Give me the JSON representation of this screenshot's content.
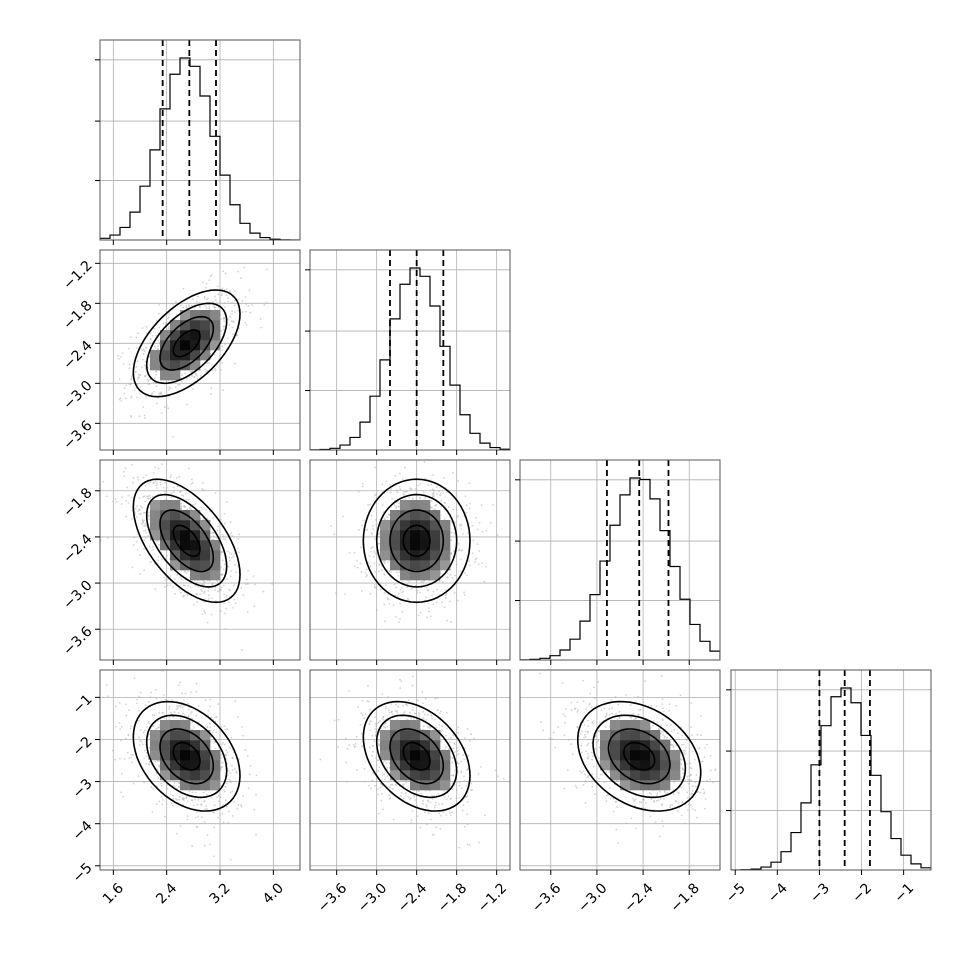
{
  "chart_data": {
    "type": "corner",
    "parameters": [
      {
        "name": "",
        "mean": 2.7,
        "std": 0.4,
        "quantiles": [
          2.34,
          2.74,
          3.14
        ],
        "hist_range": [
          1.4,
          4.4
        ],
        "ticks": [
          "1.6",
          "2.4",
          "3.2",
          "4.0"
        ],
        "tick_values": [
          1.6,
          2.4,
          3.2,
          4.0
        ]
      },
      {
        "name": "",
        "mean": -2.4,
        "std": 0.4,
        "quantiles": [
          -2.8,
          -2.4,
          -2.0
        ],
        "hist_range": [
          -4.0,
          -1.0
        ],
        "ticks": [
          "-3.6",
          "-3.0",
          "-2.4",
          "-1.8",
          "-1.2"
        ],
        "tick_values": [
          -3.6,
          -3.0,
          -2.4,
          -1.8,
          -1.2
        ]
      },
      {
        "name": "",
        "mean": -2.45,
        "std": 0.4,
        "quantiles": [
          -2.87,
          -2.45,
          -2.07
        ],
        "hist_range": [
          -4.0,
          -1.4
        ],
        "ticks": [
          "-3.6",
          "-3.0",
          "-2.4",
          "-1.8"
        ],
        "tick_values": [
          -3.6,
          -3.0,
          -2.4,
          -1.8
        ]
      },
      {
        "name": "",
        "mean": -2.4,
        "std": 0.65,
        "quantiles": [
          -3.0,
          -2.4,
          -1.8
        ],
        "hist_range": [
          -5.1,
          -0.35
        ],
        "ticks": [
          "-5",
          "-4",
          "-3",
          "-2",
          "-1"
        ],
        "tick_values": [
          -5,
          -4,
          -3,
          -2,
          -1
        ]
      }
    ],
    "correlations": [
      {
        "pair": [
          1,
          0
        ],
        "rho": 0.55
      },
      {
        "pair": [
          2,
          0
        ],
        "rho": -0.55
      },
      {
        "pair": [
          2,
          1
        ],
        "rho": 0.0
      },
      {
        "pair": [
          3,
          0
        ],
        "rho": -0.35
      },
      {
        "pair": [
          3,
          1
        ],
        "rho": -0.35
      },
      {
        "pair": [
          3,
          2
        ],
        "rho": -0.3
      }
    ],
    "histogram_bins": 20,
    "contour_levels_sigma": [
      0.5,
      1.0,
      1.5,
      2.0
    ],
    "grid": true,
    "colors": {
      "line": "#000000",
      "point": "#b0b0b0",
      "grid": "#b0b0b0",
      "frame": "#555555"
    }
  }
}
